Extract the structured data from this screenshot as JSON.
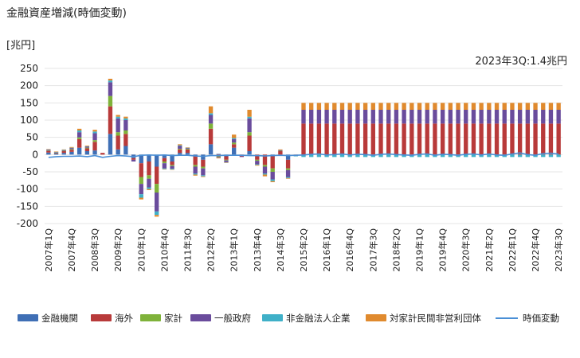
{
  "chart_data": {
    "type": "bar",
    "stacked": true,
    "title": "金融資産増減(時価変動)",
    "ylabel": "[兆円]",
    "annotation": "2023年3Q:1.4兆円",
    "ylim": [
      -200,
      250
    ],
    "yticks": [
      250,
      200,
      150,
      100,
      50,
      0,
      -50,
      -100,
      -150,
      -200
    ],
    "grid": true,
    "legend_position": "bottom",
    "start_year": 2007,
    "num_quarters": 67,
    "xtick_labels": [
      "2007年1Q",
      "2007年4Q",
      "2008年3Q",
      "2009年2Q",
      "2010年1Q",
      "2010年4Q",
      "2011年3Q",
      "2012年2Q",
      "2013年1Q",
      "2013年4Q",
      "2014年3Q",
      "2015年2Q",
      "2016年1Q",
      "2016年4Q",
      "2017年3Q",
      "2018年2Q",
      "2019年1Q",
      "2019年4Q",
      "2020年3Q",
      "2021年2Q",
      "2022年1Q",
      "2022年4Q",
      "2023年3Q"
    ],
    "series": [
      {
        "name": "金融機関",
        "color": "#3f6fb5",
        "values": [
          6,
          3,
          5,
          8,
          20,
          10,
          12,
          0,
          60,
          15,
          25,
          -10,
          -25,
          -20,
          -35,
          -10,
          -20,
          5,
          5,
          -5,
          -15,
          30,
          2,
          -5,
          20,
          0,
          10,
          0,
          0,
          -5,
          0,
          -15,
          0,
          0,
          0,
          0,
          0,
          0,
          0,
          0,
          0,
          0,
          0,
          0,
          0,
          0,
          0,
          0,
          0,
          0,
          0,
          0,
          0,
          0,
          0,
          0,
          0,
          0,
          0,
          0,
          0,
          0,
          0,
          0,
          0,
          0,
          0
        ]
      },
      {
        "name": "海外",
        "color": "#b83a3a",
        "values": [
          5,
          2,
          5,
          6,
          25,
          8,
          25,
          5,
          80,
          40,
          35,
          -5,
          -40,
          -40,
          -50,
          -10,
          -10,
          10,
          10,
          -25,
          -20,
          45,
          -5,
          -10,
          10,
          -5,
          45,
          -15,
          -30,
          -35,
          10,
          -25,
          -3,
          90,
          90,
          90,
          90,
          90,
          90,
          90,
          90,
          90,
          90,
          90,
          90,
          90,
          90,
          90,
          90,
          90,
          90,
          90,
          90,
          90,
          90,
          90,
          90,
          90,
          90,
          90,
          90,
          90,
          90,
          90,
          90,
          90,
          90
        ]
      },
      {
        "name": "家計",
        "color": "#7fb23a",
        "values": [
          1,
          1,
          1,
          2,
          5,
          2,
          5,
          0,
          30,
          10,
          10,
          0,
          -20,
          -10,
          -25,
          -5,
          -3,
          2,
          2,
          -5,
          -5,
          15,
          -2,
          -2,
          5,
          0,
          10,
          -3,
          -5,
          -10,
          1,
          -5,
          0,
          0,
          0,
          0,
          0,
          0,
          0,
          0,
          0,
          0,
          0,
          0,
          0,
          0,
          0,
          0,
          0,
          0,
          0,
          0,
          0,
          0,
          0,
          0,
          0,
          0,
          0,
          0,
          0,
          0,
          0,
          0,
          0,
          0,
          0
        ]
      },
      {
        "name": "一般政府",
        "color": "#6a4c9c",
        "values": [
          2,
          1,
          2,
          3,
          15,
          3,
          20,
          0,
          40,
          40,
          30,
          -5,
          -30,
          -25,
          -55,
          -15,
          -8,
          8,
          2,
          -20,
          -20,
          25,
          -2,
          -5,
          10,
          -2,
          40,
          -10,
          -20,
          -22,
          2,
          -20,
          -1,
          40,
          40,
          40,
          40,
          40,
          40,
          40,
          40,
          40,
          40,
          40,
          40,
          40,
          40,
          40,
          40,
          40,
          40,
          40,
          40,
          40,
          40,
          40,
          40,
          40,
          40,
          40,
          40,
          40,
          40,
          40,
          40,
          40,
          40
        ]
      },
      {
        "name": "非金融法人企業",
        "color": "#3fb0c8",
        "values": [
          1,
          1,
          1,
          1,
          5,
          1,
          5,
          0,
          5,
          5,
          5,
          0,
          -10,
          -5,
          -10,
          -2,
          -2,
          2,
          1,
          -3,
          -3,
          5,
          0,
          -1,
          3,
          0,
          5,
          -2,
          -3,
          -5,
          0,
          -3,
          -1,
          -7,
          -7,
          -7,
          -7,
          -7,
          -7,
          -7,
          -7,
          -7,
          -7,
          -7,
          -7,
          -7,
          -7,
          -7,
          -7,
          -7,
          -7,
          -7,
          -7,
          -7,
          -7,
          -7,
          -7,
          -7,
          -7,
          -7,
          -7,
          -7,
          -7,
          -7,
          -7,
          -7,
          -7
        ]
      },
      {
        "name": "対家計民間非営利団体",
        "color": "#e08a2e",
        "values": [
          1,
          1,
          1,
          2,
          5,
          2,
          5,
          0,
          5,
          5,
          5,
          0,
          -5,
          -3,
          -5,
          -1,
          -1,
          3,
          1,
          -3,
          -2,
          20,
          -2,
          -1,
          10,
          0,
          20,
          -2,
          -5,
          -3,
          2,
          -2,
          0,
          20,
          20,
          20,
          20,
          20,
          20,
          20,
          20,
          20,
          20,
          20,
          20,
          20,
          20,
          20,
          20,
          20,
          20,
          20,
          20,
          20,
          20,
          20,
          20,
          20,
          20,
          20,
          20,
          20,
          20,
          20,
          20,
          20,
          20
        ]
      }
    ],
    "line_series": {
      "name": "時価変動",
      "color": "#4a8fd6",
      "values": [
        -8,
        -6,
        -5,
        -5,
        -4,
        -6,
        -3,
        -8,
        -5,
        -3,
        -4,
        -6,
        -2,
        -1,
        -2,
        -1,
        -3,
        -2,
        -2,
        -4,
        -5,
        -3,
        -3,
        -2,
        -2,
        -2,
        -3,
        -3,
        -4,
        -3,
        -2,
        -3,
        -2,
        -1,
        1,
        2,
        -1,
        0,
        2,
        -1,
        1,
        0,
        -2,
        1,
        2,
        0,
        -1,
        -2,
        1,
        2,
        -2,
        1,
        0,
        -2,
        1,
        2,
        -1,
        2,
        -1,
        -2,
        2,
        5,
        0,
        -2,
        3,
        4,
        1.4
      ]
    }
  }
}
